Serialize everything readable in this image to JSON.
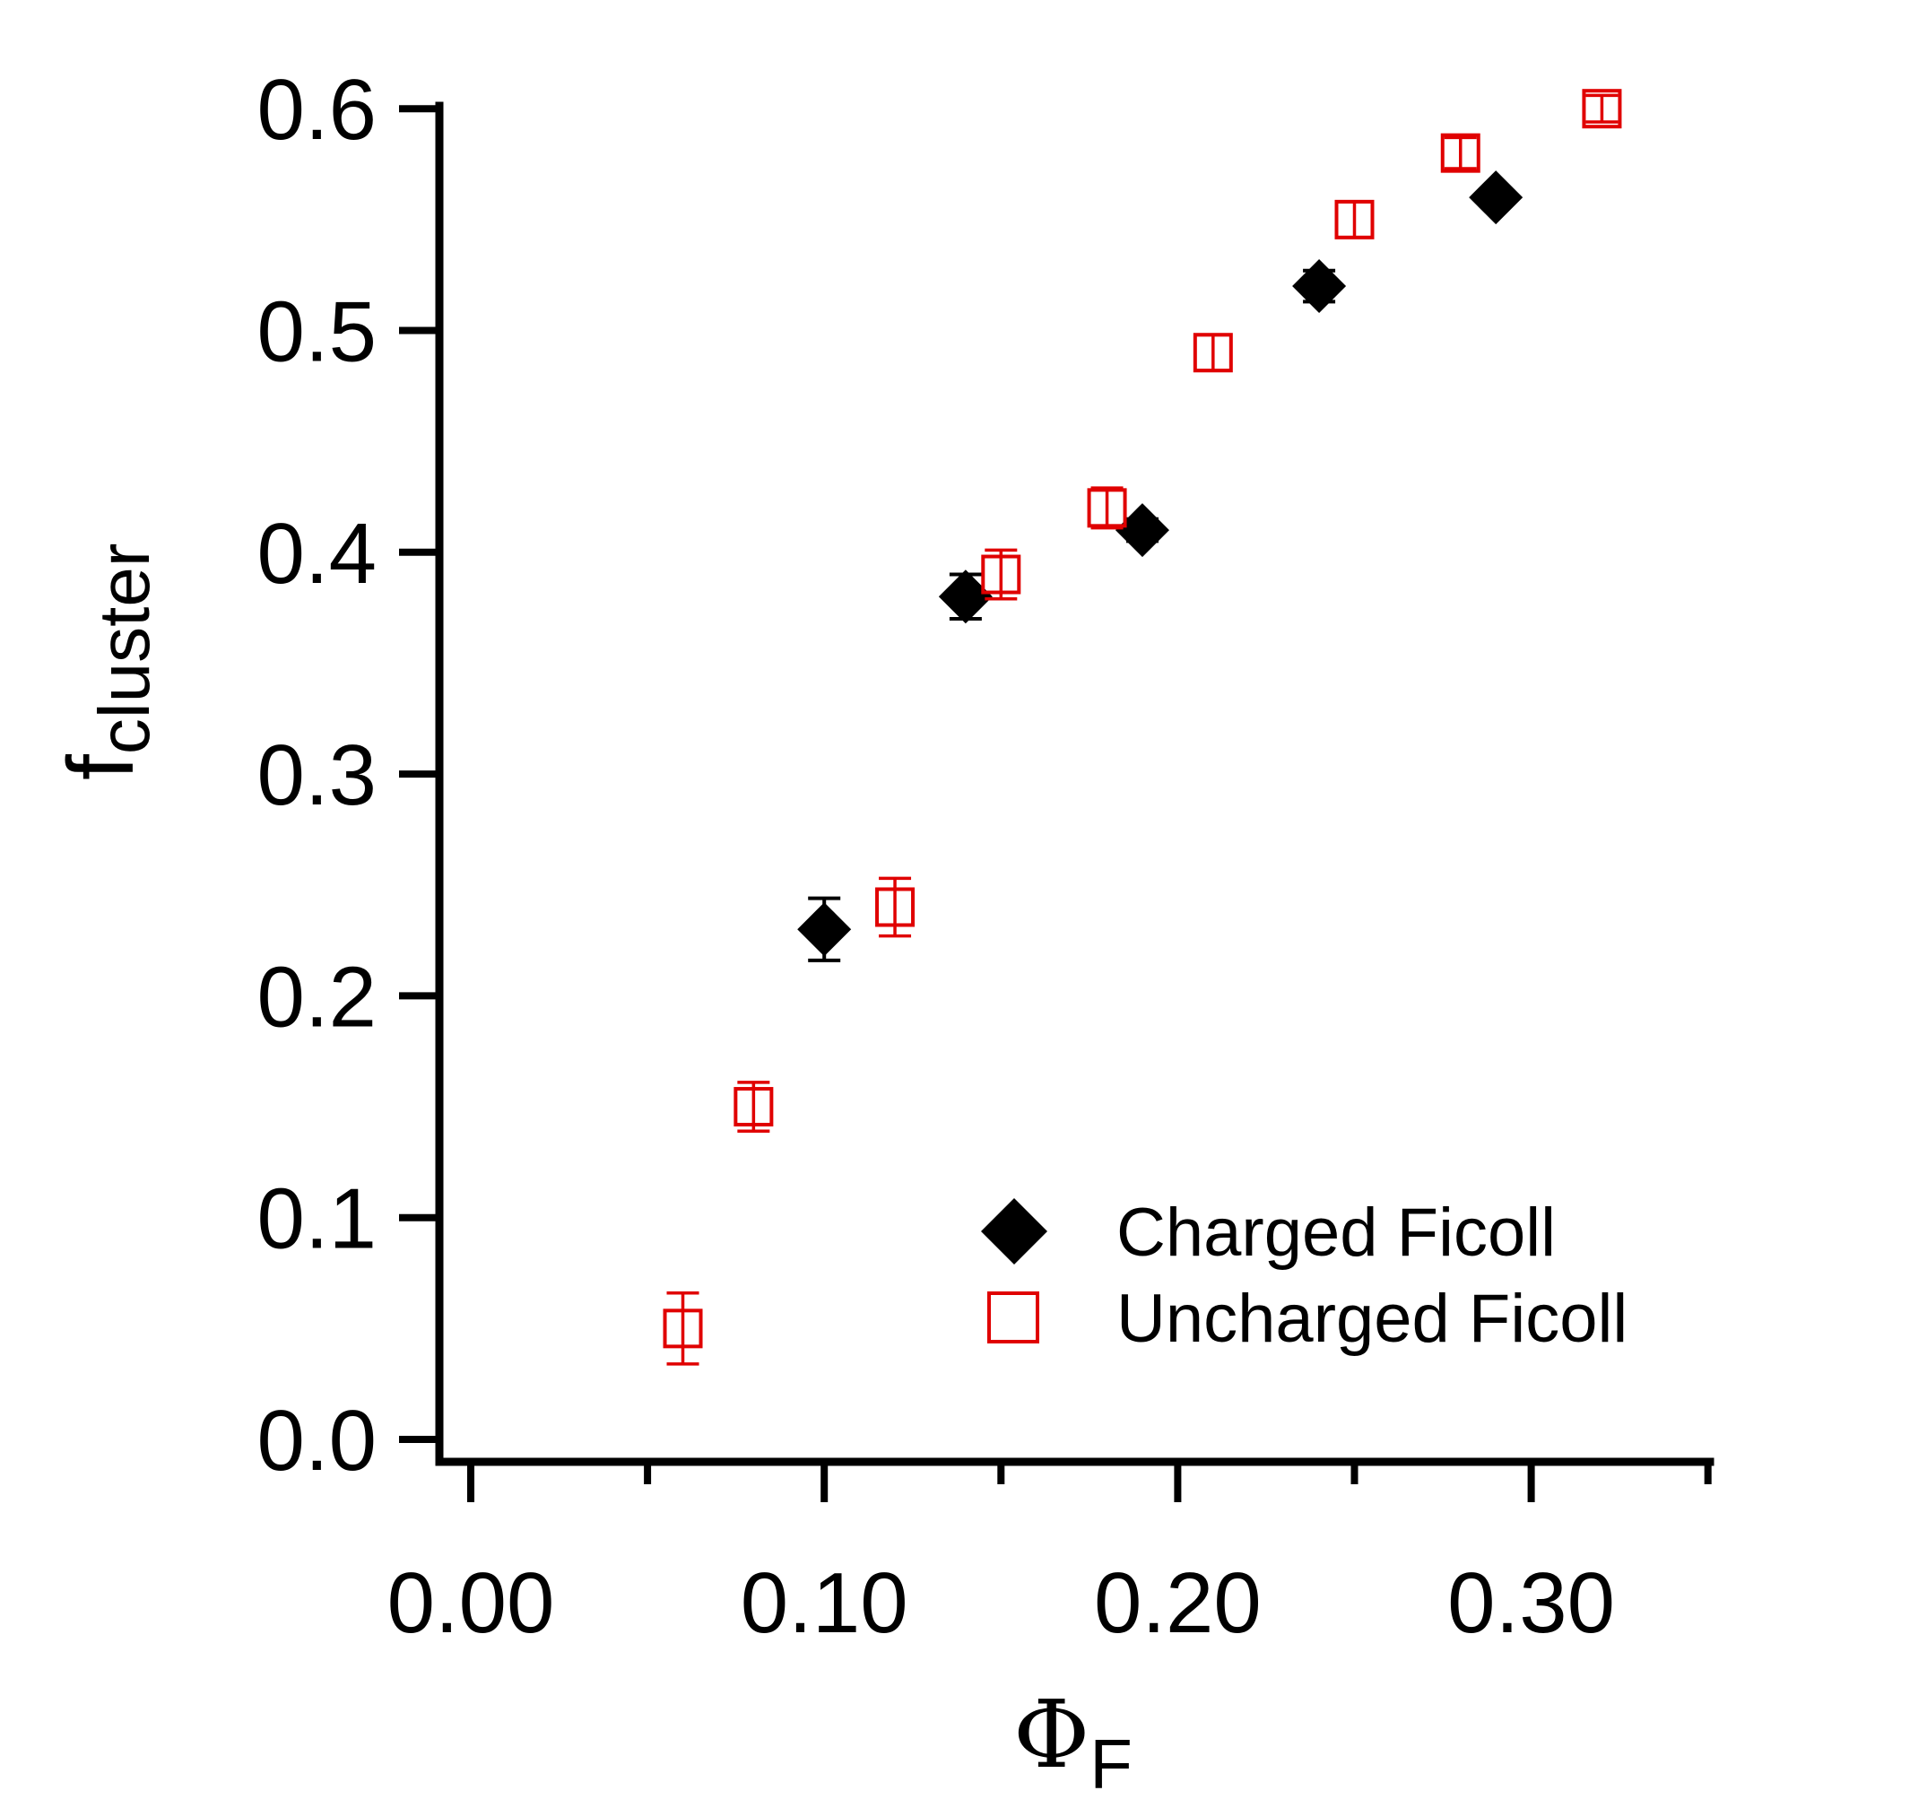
{
  "chart_data": {
    "type": "scatter",
    "xlabel": {
      "symbol": "Φ",
      "subscript": "F"
    },
    "ylabel": {
      "symbol": "f",
      "subscript": "cluster"
    },
    "xlim": [
      -0.01,
      0.35
    ],
    "ylim": [
      0.0,
      0.6
    ],
    "x_ticks": [
      0.0,
      0.1,
      0.2,
      0.3
    ],
    "x_tick_labels": [
      "0.00",
      "0.10",
      "0.20",
      "0.30"
    ],
    "x_minor_ticks": [
      0.05,
      0.15,
      0.25,
      0.35
    ],
    "y_ticks": [
      0.0,
      0.1,
      0.2,
      0.3,
      0.4,
      0.5,
      0.6
    ],
    "y_tick_labels": [
      "0.0",
      "0.1",
      "0.2",
      "0.3",
      "0.4",
      "0.5",
      "0.6"
    ],
    "grid": false,
    "legend_position": "bottom-right",
    "series": [
      {
        "name": "Charged Ficoll",
        "marker": "filled-diamond",
        "color": "#000000",
        "points": [
          {
            "x": 0.1,
            "y": 0.23,
            "err": 0.014
          },
          {
            "x": 0.14,
            "y": 0.38,
            "err": 0.01
          },
          {
            "x": 0.19,
            "y": 0.41,
            "err": 0.005
          },
          {
            "x": 0.24,
            "y": 0.52,
            "err": 0.007
          },
          {
            "x": 0.29,
            "y": 0.56,
            "err": 0.004
          }
        ]
      },
      {
        "name": "Uncharged Ficoll",
        "marker": "open-square",
        "color": "#e00000",
        "points": [
          {
            "x": 0.06,
            "y": 0.05,
            "err": 0.016
          },
          {
            "x": 0.08,
            "y": 0.15,
            "err": 0.011
          },
          {
            "x": 0.12,
            "y": 0.24,
            "err": 0.013
          },
          {
            "x": 0.15,
            "y": 0.39,
            "err": 0.011
          },
          {
            "x": 0.18,
            "y": 0.42,
            "err": 0.009
          },
          {
            "x": 0.21,
            "y": 0.49,
            "err": 0.008
          },
          {
            "x": 0.25,
            "y": 0.55,
            "err": 0.008
          },
          {
            "x": 0.28,
            "y": 0.58,
            "err": 0.007
          },
          {
            "x": 0.32,
            "y": 0.6,
            "err": 0.006
          }
        ]
      }
    ]
  }
}
